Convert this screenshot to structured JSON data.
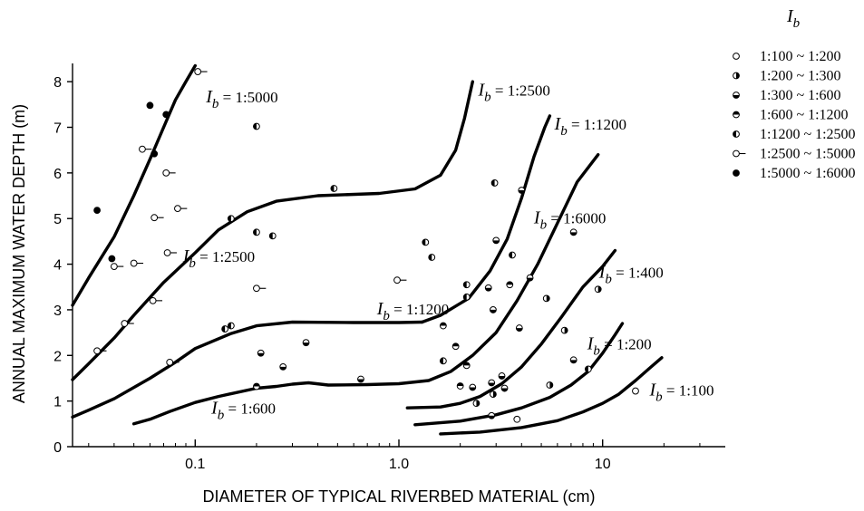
{
  "chart_data": {
    "type": "scatter",
    "title": "",
    "xlabel": "DIAMETER OF TYPICAL RIVERBED MATERIAL (cm)",
    "ylabel": "ANNUAL MAXIMUM WATER DEPTH (m)",
    "x_scale": "log",
    "xlim": [
      0.025,
      40
    ],
    "ylim": [
      0,
      8.4
    ],
    "x_ticks": [
      0.1,
      1.0,
      10
    ],
    "x_tick_labels": [
      "0.1",
      "1.0",
      "10"
    ],
    "y_ticks": [
      0,
      1,
      2,
      3,
      4,
      5,
      6,
      7,
      8
    ],
    "grid": false,
    "legend_title": "I",
    "legend_title_sub": "b",
    "legend_position": "top-right",
    "curve_label_prefix": "I",
    "curve_label_sub": "b",
    "series": [
      {
        "name": "1:100 ~ 1:200",
        "marker": "open",
        "points": [
          [
            3.8,
            0.6
          ],
          [
            14.5,
            1.22
          ]
        ]
      },
      {
        "name": "1:200 ~ 1:300",
        "marker": "half-right",
        "points": [
          [
            2.4,
            0.95
          ],
          [
            2.9,
            1.15
          ],
          [
            5.5,
            1.35
          ],
          [
            9.5,
            3.45
          ],
          [
            5.3,
            3.25
          ],
          [
            6.5,
            2.55
          ]
        ]
      },
      {
        "name": "1:300 ~ 1:600",
        "marker": "half-bottom",
        "points": [
          [
            2.85,
            0.68
          ],
          [
            2.3,
            1.3
          ],
          [
            2.85,
            1.4
          ],
          [
            3.3,
            1.28
          ],
          [
            3.2,
            1.55
          ],
          [
            7.2,
            1.9
          ],
          [
            2.75,
            3.48
          ],
          [
            4.4,
            3.7
          ],
          [
            3.9,
            2.6
          ],
          [
            2.9,
            3.0
          ],
          [
            3.0,
            4.52
          ],
          [
            4.0,
            5.62
          ],
          [
            7.2,
            4.7
          ],
          [
            0.27,
            1.75
          ],
          [
            0.35,
            2.28
          ],
          [
            0.65,
            1.48
          ],
          [
            0.21,
            2.05
          ]
        ]
      },
      {
        "name": "1:600 ~ 1:1200",
        "marker": "half-top",
        "points": [
          [
            1.65,
            2.65
          ],
          [
            1.9,
            2.2
          ],
          [
            2.15,
            1.78
          ],
          [
            3.5,
            3.55
          ],
          [
            2.0,
            1.33
          ],
          [
            0.2,
            1.32
          ]
        ]
      },
      {
        "name": "1:1200 ~ 1:2500",
        "marker": "half-left",
        "points": [
          [
            1.35,
            4.48
          ],
          [
            1.45,
            4.15
          ],
          [
            1.65,
            1.88
          ],
          [
            2.15,
            3.28
          ],
          [
            2.15,
            3.55
          ],
          [
            2.95,
            5.78
          ],
          [
            3.6,
            4.2
          ],
          [
            8.5,
            1.7
          ],
          [
            0.14,
            2.58
          ],
          [
            0.15,
            2.65
          ],
          [
            0.2,
            4.7
          ],
          [
            0.24,
            4.62
          ],
          [
            0.48,
            5.66
          ],
          [
            0.2,
            7.02
          ],
          [
            0.15,
            5.0
          ]
        ]
      },
      {
        "name": "1:2500 ~ 1:5000",
        "marker": "dash",
        "points": [
          [
            0.033,
            2.1
          ],
          [
            0.04,
            3.95
          ],
          [
            0.05,
            4.02
          ],
          [
            0.045,
            2.7
          ],
          [
            0.055,
            6.52
          ],
          [
            0.062,
            3.2
          ],
          [
            0.063,
            5.02
          ],
          [
            0.072,
            6.0
          ],
          [
            0.073,
            4.25
          ],
          [
            0.075,
            1.85
          ],
          [
            0.082,
            5.22
          ],
          [
            0.103,
            8.22
          ],
          [
            0.2,
            3.47
          ],
          [
            0.98,
            3.65
          ]
        ]
      },
      {
        "name": "1:5000 ~ 1:6000",
        "marker": "filled",
        "points": [
          [
            0.033,
            5.18
          ],
          [
            0.039,
            4.12
          ],
          [
            0.06,
            7.48
          ],
          [
            0.063,
            6.42
          ],
          [
            0.072,
            7.28
          ]
        ]
      }
    ],
    "curves": [
      {
        "label": "1:5000",
        "points": [
          [
            0.025,
            3.1
          ],
          [
            0.03,
            3.7
          ],
          [
            0.04,
            4.6
          ],
          [
            0.05,
            5.5
          ],
          [
            0.06,
            6.3
          ],
          [
            0.07,
            7.0
          ],
          [
            0.08,
            7.6
          ],
          [
            0.09,
            8.0
          ],
          [
            0.1,
            8.35
          ]
        ]
      },
      {
        "label": "1:2500",
        "points": [
          [
            0.025,
            1.47
          ],
          [
            0.03,
            1.82
          ],
          [
            0.04,
            2.38
          ],
          [
            0.05,
            2.88
          ],
          [
            0.07,
            3.6
          ],
          [
            0.1,
            4.25
          ],
          [
            0.13,
            4.75
          ],
          [
            0.18,
            5.15
          ],
          [
            0.25,
            5.38
          ],
          [
            0.4,
            5.5
          ],
          [
            0.8,
            5.55
          ],
          [
            1.2,
            5.65
          ],
          [
            1.6,
            5.95
          ],
          [
            1.9,
            6.5
          ],
          [
            2.1,
            7.2
          ],
          [
            2.3,
            8.0
          ]
        ]
      },
      {
        "label": "1:2500",
        "points": [
          [
            0.025,
            0.65
          ],
          [
            0.03,
            0.8
          ],
          [
            0.04,
            1.05
          ],
          [
            0.06,
            1.5
          ],
          [
            0.08,
            1.85
          ],
          [
            0.1,
            2.15
          ],
          [
            0.15,
            2.48
          ],
          [
            0.2,
            2.65
          ],
          [
            0.3,
            2.73
          ],
          [
            0.6,
            2.72
          ],
          [
            1.0,
            2.72
          ],
          [
            1.3,
            2.73
          ]
        ]
      },
      {
        "label": "1:1200",
        "points": [
          [
            1.3,
            2.73
          ],
          [
            1.6,
            2.88
          ],
          [
            2.2,
            3.25
          ],
          [
            2.8,
            3.85
          ],
          [
            3.4,
            4.55
          ],
          [
            4.0,
            5.45
          ],
          [
            4.6,
            6.35
          ],
          [
            5.2,
            7.0
          ],
          [
            5.5,
            7.25
          ]
        ]
      },
      {
        "label": "1:600",
        "points": [
          [
            0.05,
            0.5
          ],
          [
            0.06,
            0.6
          ],
          [
            0.075,
            0.77
          ],
          [
            0.1,
            0.97
          ],
          [
            0.13,
            1.1
          ],
          [
            0.2,
            1.28
          ],
          [
            0.25,
            1.32
          ],
          [
            0.3,
            1.37
          ],
          [
            0.36,
            1.4
          ],
          [
            0.45,
            1.35
          ],
          [
            0.7,
            1.36
          ],
          [
            1.0,
            1.38
          ],
          [
            1.4,
            1.45
          ],
          [
            1.8,
            1.65
          ],
          [
            2.3,
            2.0
          ],
          [
            3.0,
            2.5
          ],
          [
            3.8,
            3.2
          ],
          [
            4.8,
            4.0
          ],
          [
            6.0,
            4.9
          ],
          [
            7.5,
            5.8
          ],
          [
            9.5,
            6.4
          ]
        ]
      },
      {
        "label": "1:6000",
        "points": []
      },
      {
        "label": "1:400",
        "points": [
          [
            1.1,
            0.85
          ],
          [
            1.6,
            0.87
          ],
          [
            2.0,
            0.95
          ],
          [
            2.5,
            1.1
          ],
          [
            3.2,
            1.38
          ],
          [
            4.0,
            1.75
          ],
          [
            5.0,
            2.25
          ],
          [
            6.3,
            2.85
          ],
          [
            8.0,
            3.5
          ],
          [
            10.0,
            3.95
          ],
          [
            11.5,
            4.3
          ]
        ]
      },
      {
        "label": "1:200",
        "points": [
          [
            1.2,
            0.48
          ],
          [
            2.0,
            0.56
          ],
          [
            3.0,
            0.7
          ],
          [
            4.0,
            0.85
          ],
          [
            5.5,
            1.08
          ],
          [
            7.0,
            1.35
          ],
          [
            8.5,
            1.65
          ],
          [
            10.0,
            2.05
          ],
          [
            11.5,
            2.45
          ],
          [
            12.5,
            2.7
          ]
        ]
      },
      {
        "label": "1:100",
        "points": [
          [
            1.6,
            0.28
          ],
          [
            2.5,
            0.32
          ],
          [
            4.0,
            0.42
          ],
          [
            6.0,
            0.57
          ],
          [
            8.0,
            0.76
          ],
          [
            10.0,
            0.95
          ],
          [
            12.0,
            1.15
          ],
          [
            14.5,
            1.45
          ],
          [
            17.0,
            1.72
          ],
          [
            19.5,
            1.95
          ]
        ]
      }
    ],
    "curve_labels": [
      {
        "text": "1:5000",
        "at": [
          0.113,
          7.55
        ]
      },
      {
        "text": "1:2500",
        "at": [
          2.45,
          7.7
        ]
      },
      {
        "text": "1:2500",
        "at": [
          0.087,
          4.05
        ]
      },
      {
        "text": "1:1200",
        "at": [
          0.78,
          2.9
        ]
      },
      {
        "text": "1:1200",
        "at": [
          5.8,
          6.95
        ]
      },
      {
        "text": "1:6000",
        "at": [
          4.6,
          4.9
        ]
      },
      {
        "text": "1:600",
        "at": [
          0.12,
          0.72
        ]
      },
      {
        "text": "1:400",
        "at": [
          9.6,
          3.7
        ]
      },
      {
        "text": "1:200",
        "at": [
          8.4,
          2.13
        ]
      },
      {
        "text": "1:100",
        "at": [
          17.0,
          1.12
        ]
      }
    ]
  }
}
